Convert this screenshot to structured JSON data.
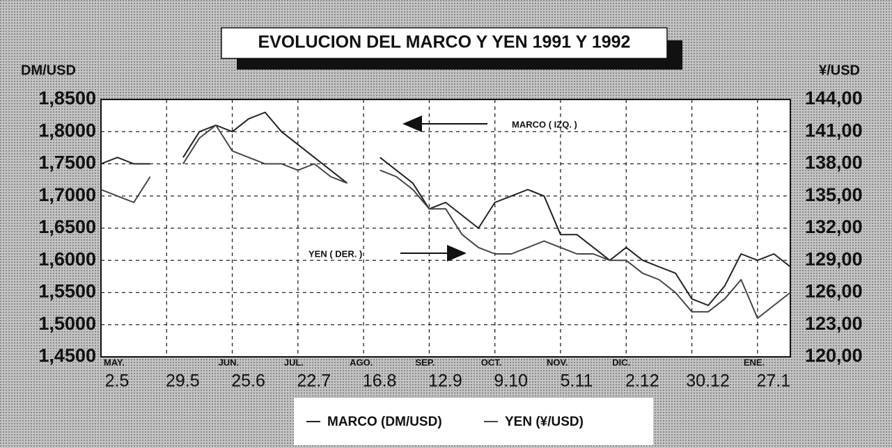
{
  "chart_data": {
    "type": "line",
    "title": "EVOLUCION DEL MARCO Y YEN 1991 Y 1992",
    "y_label": "DM/USD",
    "y2_label": "¥/USD",
    "categories": [
      "2.5",
      null,
      null,
      null,
      "29.5",
      null,
      null,
      null,
      "25.6",
      null,
      null,
      null,
      "22.7",
      null,
      null,
      null,
      "16.8",
      null,
      null,
      null,
      "12.9",
      null,
      null,
      null,
      "9.10",
      null,
      null,
      null,
      "5.11",
      null,
      null,
      null,
      "2.12",
      null,
      null,
      null,
      "30.12",
      null,
      null,
      null,
      "27.1",
      null,
      null
    ],
    "months": [
      "MAY.",
      null,
      null,
      null,
      null,
      null,
      null,
      null,
      "JUN.",
      null,
      null,
      null,
      "JUL.",
      null,
      null,
      null,
      "AGO.",
      null,
      null,
      null,
      "SEP.",
      null,
      null,
      null,
      "OCT.",
      null,
      null,
      null,
      "NOV.",
      null,
      null,
      null,
      "DIC.",
      null,
      null,
      null,
      null,
      null,
      null,
      null,
      "ENE.",
      null,
      null
    ],
    "series": [
      {
        "name": "MARCO (DM/USD)",
        "color": "#222222",
        "axis": "y",
        "values": [
          1.75,
          1.76,
          1.75,
          1.75,
          null,
          1.76,
          1.8,
          1.81,
          1.8,
          1.82,
          1.83,
          1.8,
          1.78,
          1.76,
          1.74,
          1.72,
          null,
          1.76,
          1.74,
          1.72,
          1.68,
          1.69,
          1.67,
          1.65,
          1.69,
          1.7,
          1.71,
          1.7,
          1.64,
          1.64,
          1.62,
          1.6,
          1.62,
          1.6,
          1.59,
          1.58,
          1.54,
          1.53,
          1.56,
          1.61,
          1.6,
          1.61,
          1.59
        ]
      },
      {
        "name": "YEN (¥/USD)",
        "color": "#444444",
        "axis": "y2",
        "values": [
          135.6,
          135.0,
          134.4,
          136.8,
          null,
          138.0,
          140.4,
          141.6,
          139.2,
          138.6,
          138.0,
          138.0,
          137.4,
          138.0,
          136.8,
          136.2,
          null,
          137.4,
          136.8,
          135.6,
          133.8,
          133.8,
          131.4,
          130.2,
          129.6,
          129.6,
          130.2,
          130.8,
          130.2,
          129.6,
          129.6,
          129.0,
          129.0,
          127.8,
          127.2,
          126.0,
          124.2,
          124.2,
          125.4,
          127.2,
          123.6,
          124.8,
          126.0
        ]
      }
    ],
    "ylim": [
      1.45,
      1.85
    ],
    "yticks": [
      {
        "value": 1.45,
        "label": "1,4500"
      },
      {
        "value": 1.5,
        "label": "1,5000"
      },
      {
        "value": 1.55,
        "label": "1,5500"
      },
      {
        "value": 1.6,
        "label": "1,6000"
      },
      {
        "value": 1.65,
        "label": "1,6500"
      },
      {
        "value": 1.7,
        "label": "1,7000"
      },
      {
        "value": 1.75,
        "label": "1,7500"
      },
      {
        "value": 1.8,
        "label": "1,8000"
      },
      {
        "value": 1.85,
        "label": "1,8500"
      }
    ],
    "y2lim": [
      120,
      144
    ],
    "y2ticks": [
      {
        "value": 120,
        "label": "120,00"
      },
      {
        "value": 123,
        "label": "123,00"
      },
      {
        "value": 126,
        "label": "126,00"
      },
      {
        "value": 129,
        "label": "129,00"
      },
      {
        "value": 132,
        "label": "132,00"
      },
      {
        "value": 135,
        "label": "135,00"
      },
      {
        "value": 138,
        "label": "138,00"
      },
      {
        "value": 141,
        "label": "141,00"
      },
      {
        "value": 144,
        "label": "144,00"
      }
    ],
    "grid": true,
    "annotations": [
      "MARCO ( IZQ. )",
      "YEN ( DER. )"
    ]
  }
}
